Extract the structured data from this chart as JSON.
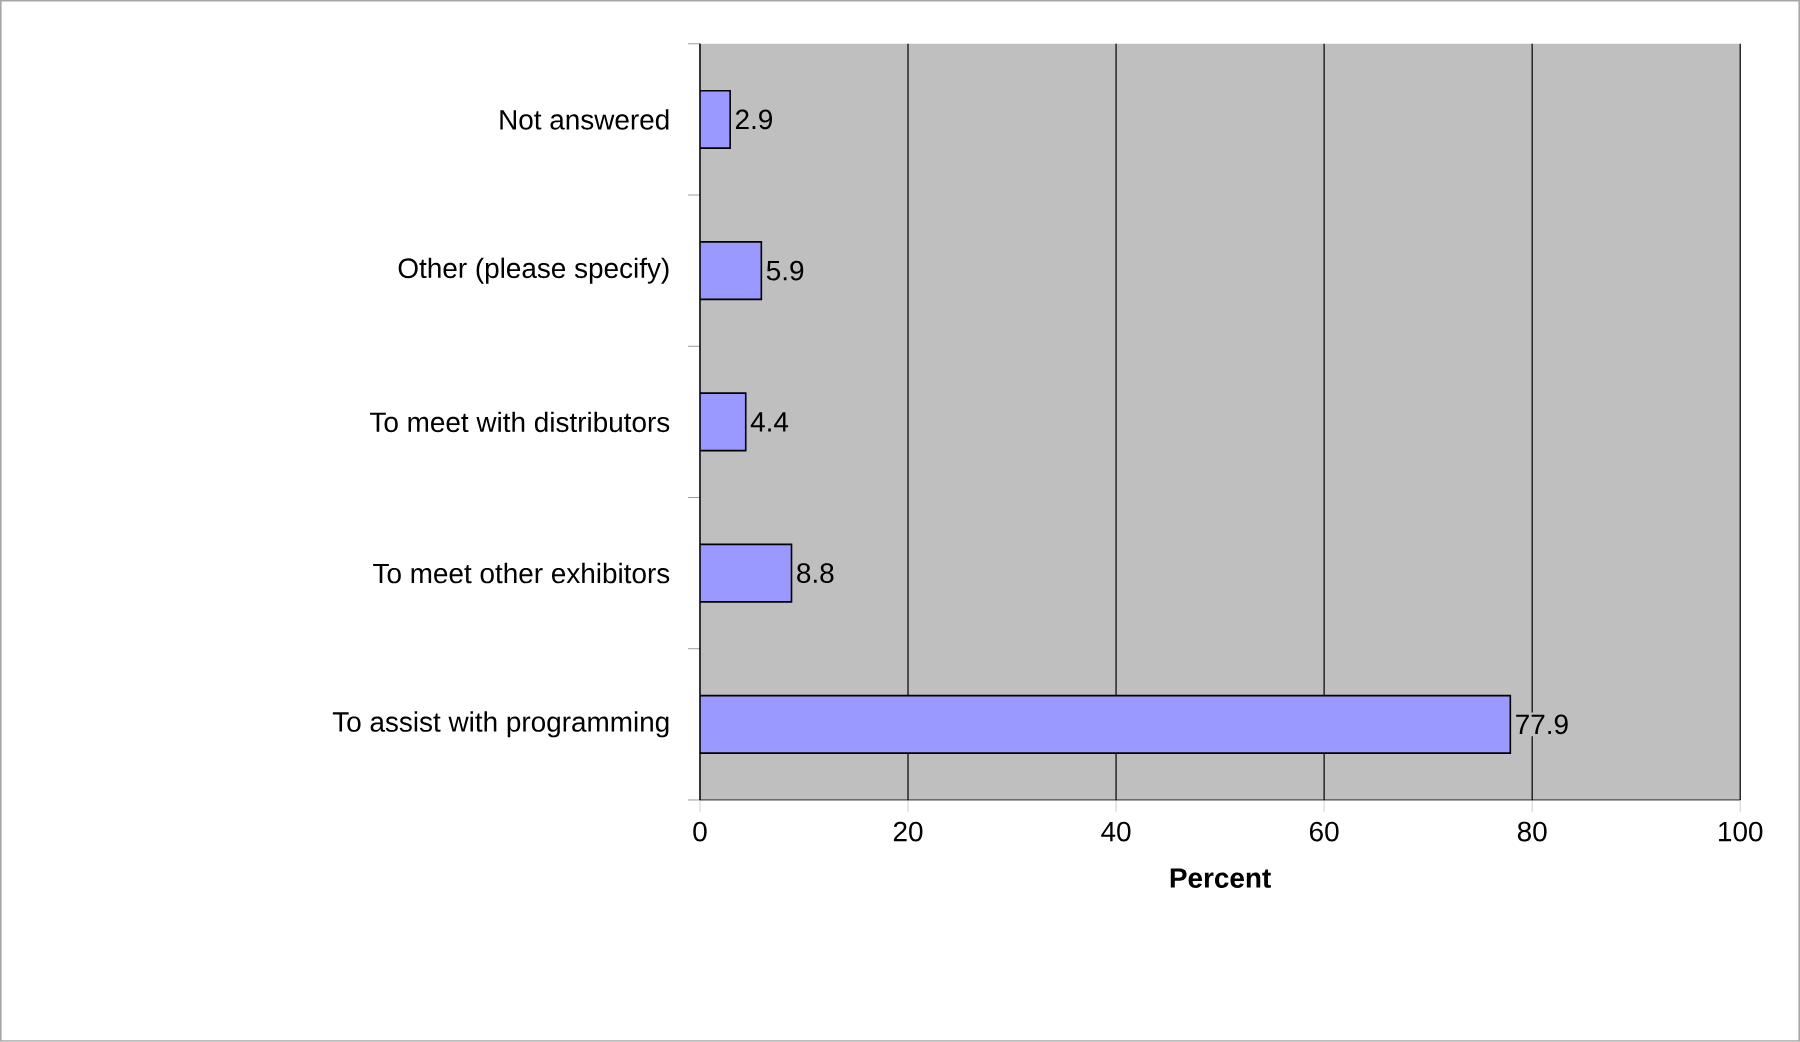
{
  "chart_data": {
    "type": "bar",
    "orientation": "horizontal",
    "xlabel": "Percent",
    "categories": [
      "Not answered",
      "Other (please specify)",
      "To meet with distributors",
      "To meet other exhibitors",
      "To assist with programming"
    ],
    "values": [
      2.9,
      5.9,
      4.4,
      8.8,
      77.9
    ],
    "value_labels": [
      "2.9",
      "5.9",
      "4.4",
      "8.8",
      "77.9"
    ],
    "color": "#9999ff",
    "xlim": [
      0,
      100
    ],
    "xticks": [
      0,
      20,
      40,
      60,
      80,
      100
    ],
    "grid": "x"
  }
}
